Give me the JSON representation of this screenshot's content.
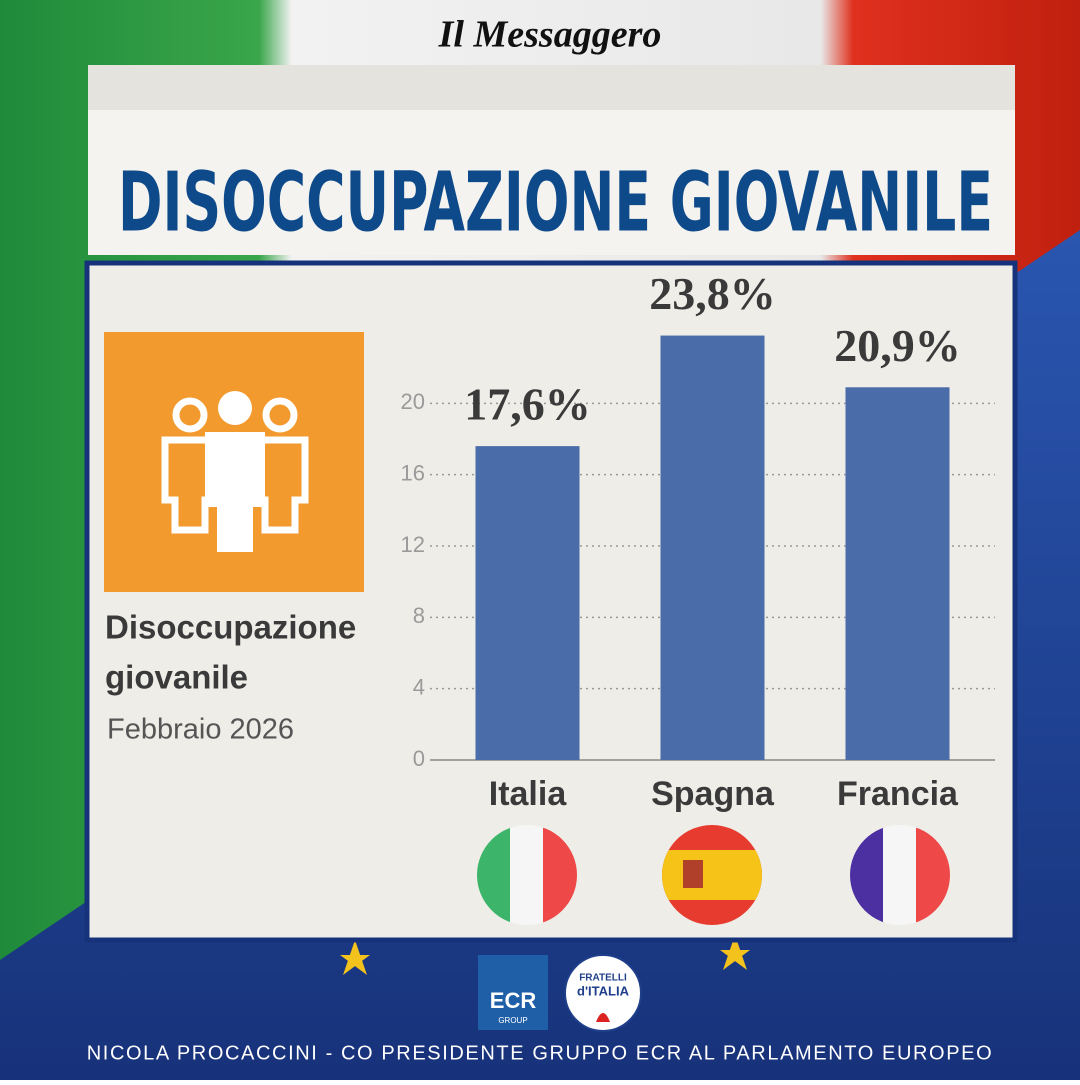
{
  "header": {
    "newspaper": "Il Messaggero"
  },
  "chart_data": {
    "type": "bar",
    "title": "DISOCCUPAZIONE GIOVANILE",
    "panel_title": [
      "Disoccupazione",
      "giovanile"
    ],
    "subtitle": "Febbraio 2026",
    "categories": [
      "Italia",
      "Spagna",
      "Francia"
    ],
    "values": [
      17.6,
      23.8,
      20.9
    ],
    "value_labels": [
      "17,6%",
      "23,8%",
      "20,9%"
    ],
    "color": "#4a6ca8",
    "ylim": [
      0,
      24
    ],
    "yticks": [
      0,
      4,
      8,
      12,
      16,
      20
    ],
    "grid": true
  },
  "logos": {
    "ecr": [
      "ECR",
      "GROUP"
    ],
    "fdi": [
      "FRATELLI",
      "d'ITALIA"
    ]
  },
  "footer": "NICOLA PROCACCINI - CO PRESIDENTE GRUPPO ECR AL PARLAMENTO EUROPEO"
}
